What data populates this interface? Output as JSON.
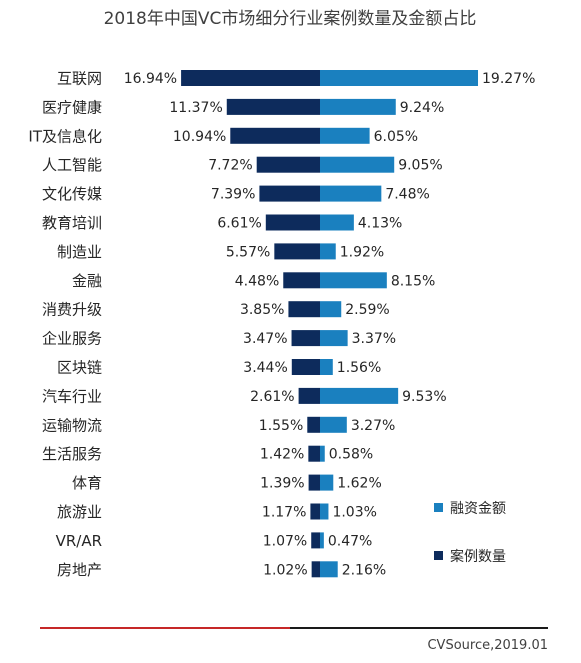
{
  "chart_data": {
    "type": "bar",
    "orientation": "horizontal-butterfly",
    "title": "2018年中国VC市场细分行业案例数量及金额占比",
    "categories": [
      "互联网",
      "医疗健康",
      "IT及信息化",
      "人工智能",
      "文化传媒",
      "教育培训",
      "制造业",
      "金融",
      "消费升级",
      "企业服务",
      "区块链",
      "汽车行业",
      "运输物流",
      "生活服务",
      "体育",
      "旅游业",
      "VR/AR",
      "房地产"
    ],
    "series": [
      {
        "name": "案例数量",
        "color": "#0d2b5c",
        "side": "left",
        "values": [
          16.94,
          11.37,
          10.94,
          7.72,
          7.39,
          6.61,
          5.57,
          4.48,
          3.85,
          3.47,
          3.44,
          2.61,
          1.55,
          1.42,
          1.39,
          1.17,
          1.07,
          1.02
        ],
        "labels": [
          "16.94%",
          "11.37%",
          "10.94%",
          "7.72%",
          "7.39%",
          "6.61%",
          "5.57%",
          "4.48%",
          "3.85%",
          "3.47%",
          "3.44%",
          "2.61%",
          "1.55%",
          "1.42%",
          "1.39%",
          "1.17%",
          "1.07%",
          "1.02%"
        ]
      },
      {
        "name": "融资金额",
        "color": "#1a80bf",
        "side": "right",
        "values": [
          19.27,
          9.24,
          6.05,
          9.05,
          7.48,
          4.13,
          1.92,
          8.15,
          2.59,
          3.37,
          1.56,
          9.53,
          3.27,
          0.58,
          1.62,
          1.03,
          0.47,
          2.16
        ],
        "labels": [
          "19.27%",
          "9.24%",
          "6.05%",
          "9.05%",
          "7.48%",
          "4.13%",
          "1.92%",
          "8.15%",
          "2.59%",
          "3.37%",
          "1.56%",
          "9.53%",
          "3.27%",
          "0.58%",
          "1.62%",
          "1.03%",
          "0.47%",
          "2.16%"
        ]
      }
    ],
    "legend": [
      {
        "name": "融资金额",
        "color": "#1a80bf"
      },
      {
        "name": "案例数量",
        "color": "#0d2b5c"
      }
    ],
    "legend_position": "bottom-right"
  },
  "source": "CVSource,2019.01",
  "footer_line_colors": [
    "#c62828",
    "#1a1a1a"
  ]
}
